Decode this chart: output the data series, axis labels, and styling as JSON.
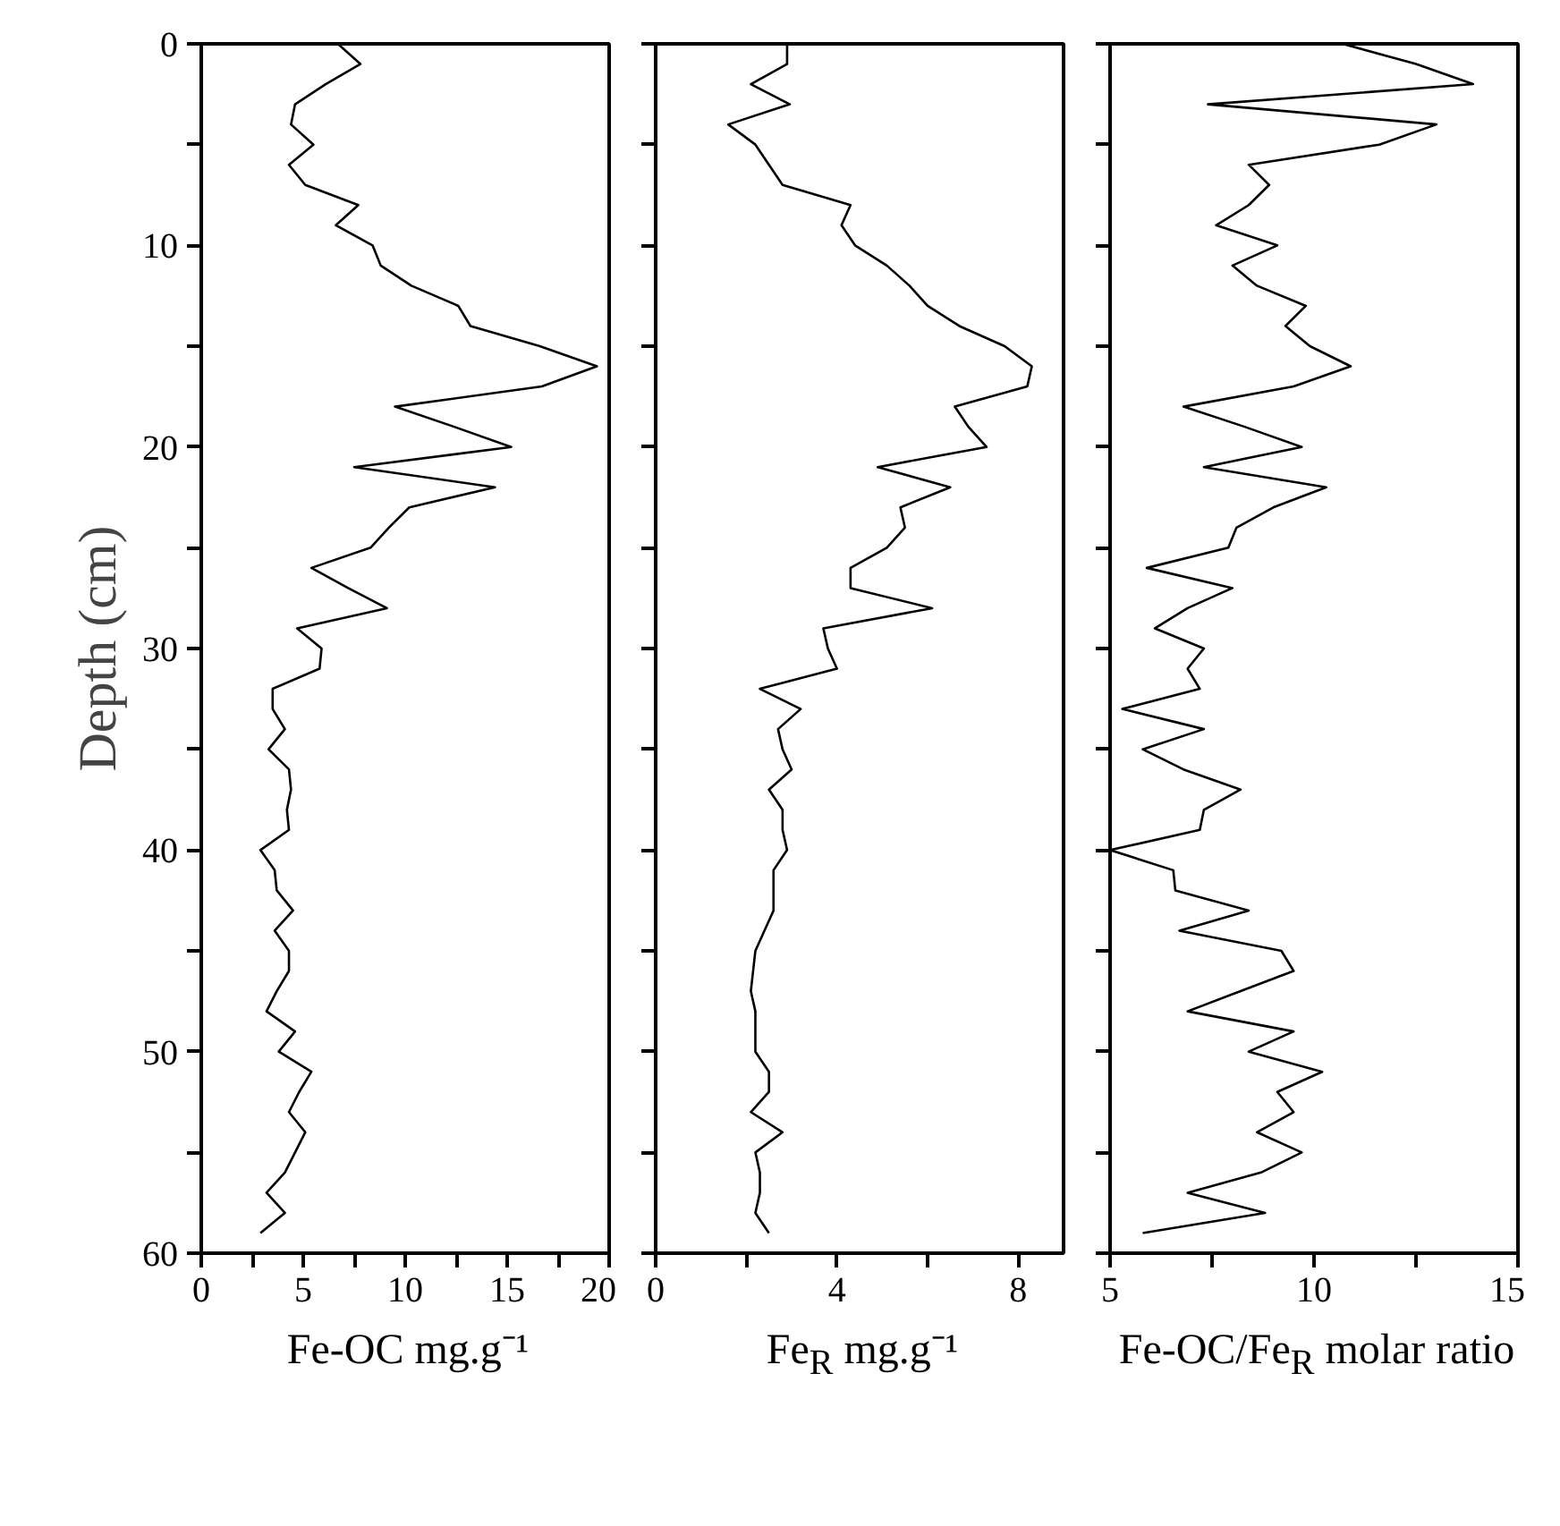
{
  "chart_data": [
    {
      "type": "line",
      "xlabel": "Fe-OC mg.g⁻¹",
      "ylabel": "Depth (cm)",
      "color": "#000000",
      "x": [
        6.7,
        7.8,
        6.1,
        4.6,
        4.4,
        5.5,
        4.3,
        5.1,
        7.7,
        6.6,
        8.4,
        8.8,
        10.3,
        12.6,
        13.2,
        16.6,
        19.4,
        16.7,
        9.5,
        12.4,
        15.2,
        7.5,
        14.4,
        10.2,
        9.2,
        8.3,
        5.4,
        7.2,
        9.1,
        4.7,
        5.9,
        5.8,
        3.5,
        3.5,
        4.1,
        3.3,
        4.3,
        4.4,
        4.2,
        4.3,
        2.9,
        3.6,
        3.7,
        4.5,
        3.6,
        4.3,
        4.3,
        3.7,
        3.2,
        4.6,
        3.8,
        5.4,
        4.8,
        4.3,
        5.1,
        4.6,
        4.1,
        3.2,
        4.1,
        2.9
      ],
      "values": [
        0,
        1,
        2,
        3,
        4,
        5,
        6,
        7,
        8,
        9,
        10,
        11,
        12,
        13,
        14,
        15,
        16,
        17,
        18,
        19,
        20,
        21,
        22,
        23,
        24,
        25,
        26,
        27,
        28,
        29,
        30,
        31,
        32,
        33,
        34,
        35,
        36,
        37,
        38,
        39,
        40,
        41,
        42,
        43,
        44,
        45,
        46,
        47,
        48,
        49,
        50,
        51,
        52,
        53,
        54,
        55,
        56,
        57,
        58,
        59
      ],
      "xlim": [
        0,
        20
      ],
      "xticks": [
        0,
        {
          "value": 2.5,
          "label": null
        },
        5,
        {
          "value": 7.5,
          "label": null
        },
        10,
        {
          "value": 12.5,
          "label": null
        },
        15,
        {
          "value": 17.5,
          "label": null
        },
        20
      ],
      "ylim": [
        60,
        0
      ],
      "yticks": [
        0,
        {
          "value": 5,
          "label": null
        },
        10,
        {
          "value": 15,
          "label": null
        },
        20,
        {
          "value": 25,
          "label": null
        },
        30,
        {
          "value": 35,
          "label": null
        },
        40,
        {
          "value": 45,
          "label": null
        },
        50,
        {
          "value": 55,
          "label": null
        },
        60
      ]
    },
    {
      "type": "line",
      "xlabel": "Fe$_{R}$ mg.g⁻¹",
      "color": "#000000",
      "tick_labels": "x",
      "x": [
        2.9,
        2.9,
        2.1,
        2.96,
        1.6,
        2.2,
        2.5,
        2.8,
        4.3,
        4.1,
        4.4,
        5.1,
        5.6,
        6.0,
        6.7,
        7.7,
        8.3,
        8.2,
        6.6,
        6.9,
        7.3,
        4.9,
        6.5,
        5.4,
        5.5,
        5.1,
        4.3,
        4.3,
        6.1,
        3.7,
        3.8,
        4.0,
        2.3,
        3.2,
        2.7,
        2.8,
        3.0,
        2.5,
        2.8,
        2.8,
        2.9,
        2.6,
        2.6,
        2.6,
        2.4,
        2.2,
        2.15,
        2.1,
        2.2,
        2.2,
        2.2,
        2.5,
        2.5,
        2.1,
        2.8,
        2.2,
        2.3,
        2.3,
        2.2,
        2.5
      ],
      "values": [
        0,
        1,
        2,
        3,
        4,
        5,
        6,
        7,
        8,
        9,
        10,
        11,
        12,
        13,
        14,
        15,
        16,
        17,
        18,
        19,
        20,
        21,
        22,
        23,
        24,
        25,
        26,
        27,
        28,
        29,
        30,
        31,
        32,
        33,
        34,
        35,
        36,
        37,
        38,
        39,
        40,
        41,
        42,
        43,
        44,
        45,
        46,
        47,
        48,
        49,
        50,
        51,
        52,
        53,
        54,
        55,
        56,
        57,
        58,
        59
      ],
      "xlim": [
        0,
        9
      ],
      "xticks": [
        0,
        {
          "value": 2,
          "label": null
        },
        4,
        {
          "value": 6,
          "label": null
        },
        8
      ],
      "ylim": [
        60,
        0
      ],
      "yticks": [
        {
          "value": 0,
          "label": null
        },
        {
          "value": 5,
          "label": null
        },
        {
          "value": 10,
          "label": null
        },
        {
          "value": 15,
          "label": null
        },
        {
          "value": 20,
          "label": null
        },
        {
          "value": 25,
          "label": null
        },
        {
          "value": 30,
          "label": null
        },
        {
          "value": 35,
          "label": null
        },
        {
          "value": 40,
          "label": null
        },
        {
          "value": 45,
          "label": null
        },
        {
          "value": 50,
          "label": null
        },
        {
          "value": 55,
          "label": null
        },
        {
          "value": 60,
          "label": null
        }
      ]
    },
    {
      "type": "line",
      "xlabel": "Fe-OC/Fe$_{R}$ molar ratio",
      "color": "#000000",
      "tick_labels": "x",
      "x": [
        10.7,
        12.5,
        13.9,
        7.4,
        13.0,
        11.6,
        8.4,
        8.9,
        8.4,
        7.6,
        9.1,
        8.0,
        8.6,
        9.8,
        9.3,
        9.9,
        10.9,
        9.5,
        6.8,
        8.3,
        9.7,
        7.3,
        10.3,
        9.0,
        8.1,
        7.9,
        5.9,
        8.0,
        6.9,
        6.1,
        7.3,
        6.9,
        7.2,
        5.3,
        7.3,
        5.8,
        6.8,
        8.2,
        7.3,
        7.2,
        5.0,
        6.55,
        6.6,
        8.4,
        6.7,
        9.2,
        9.5,
        8.2,
        6.9,
        9.5,
        8.4,
        10.2,
        9.1,
        9.5,
        8.6,
        9.7,
        8.7,
        6.9,
        8.8,
        5.8
      ],
      "values": [
        0,
        1,
        2,
        3,
        4,
        5,
        6,
        7,
        8,
        9,
        10,
        11,
        12,
        13,
        14,
        15,
        16,
        17,
        18,
        19,
        20,
        21,
        22,
        23,
        24,
        25,
        26,
        27,
        28,
        29,
        30,
        31,
        32,
        33,
        34,
        35,
        36,
        37,
        38,
        39,
        40,
        41,
        42,
        43,
        44,
        45,
        46,
        47,
        48,
        49,
        50,
        51,
        52,
        53,
        54,
        55,
        56,
        57,
        58,
        59
      ],
      "xlim": [
        5,
        15
      ],
      "xticks": [
        5,
        {
          "value": 7.5,
          "label": null
        },
        10,
        {
          "value": 12.5,
          "label": null
        },
        15
      ],
      "ylim": [
        60,
        0
      ],
      "yticks": [
        {
          "value": 0,
          "label": null
        },
        {
          "value": 5,
          "label": null
        },
        {
          "value": 10,
          "label": null
        },
        {
          "value": 15,
          "label": null
        },
        {
          "value": 20,
          "label": null
        },
        {
          "value": 25,
          "label": null
        },
        {
          "value": 30,
          "label": null
        },
        {
          "value": 35,
          "label": null
        },
        {
          "value": 40,
          "label": null
        },
        {
          "value": 45,
          "label": null
        },
        {
          "value": 50,
          "label": null
        },
        {
          "value": 55,
          "label": null
        },
        {
          "value": 60,
          "label": null
        }
      ]
    }
  ]
}
